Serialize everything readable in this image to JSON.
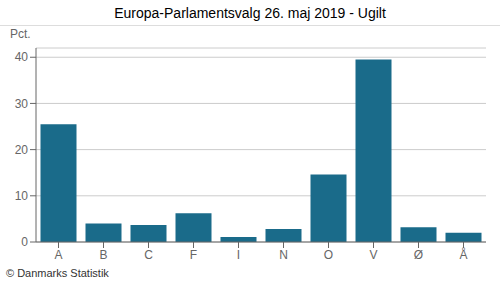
{
  "chart_data": {
    "type": "bar",
    "title": "Europa-Parlamentsvalg 26. maj 2019 - Ugilt",
    "ylabel": "Pct.",
    "footer": "© Danmarks Statistik",
    "categories": [
      "A",
      "B",
      "C",
      "F",
      "I",
      "N",
      "O",
      "V",
      "Ø",
      "Å"
    ],
    "values": [
      25.5,
      4.0,
      3.7,
      6.2,
      1.1,
      2.8,
      14.6,
      39.5,
      3.2,
      2.0
    ],
    "color": "#1a6b8a",
    "ylim": [
      0,
      42
    ],
    "yticks": [
      0,
      10,
      20,
      30,
      40
    ],
    "grid": true
  }
}
